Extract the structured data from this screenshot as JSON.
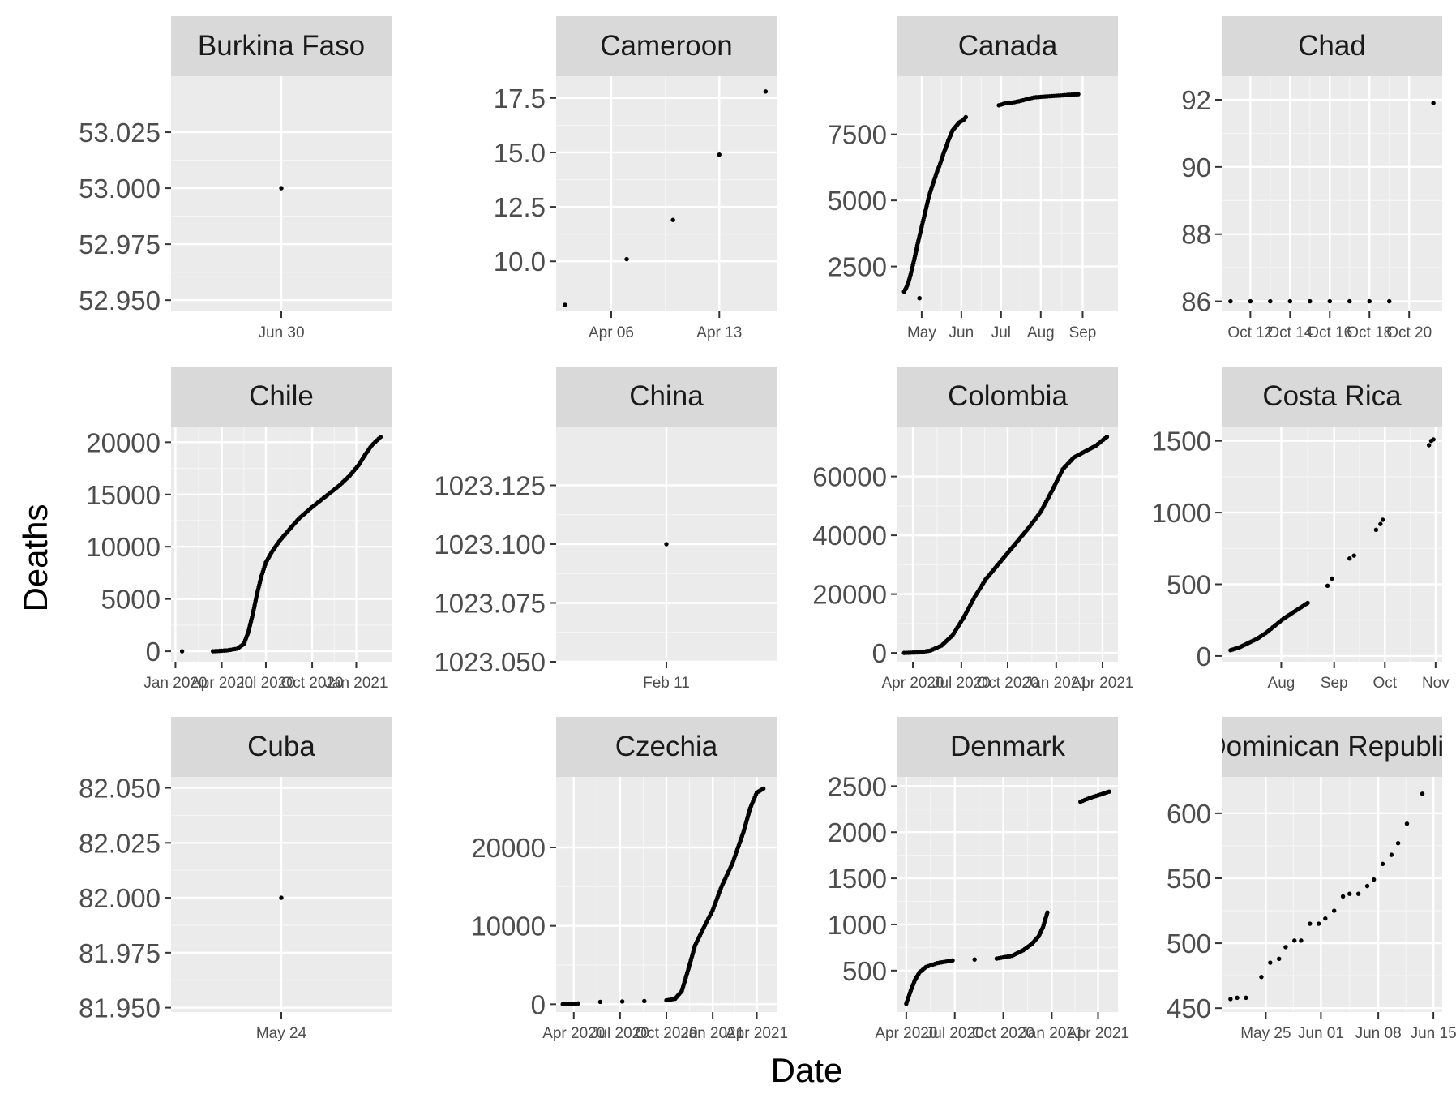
{
  "chart_data": {
    "type": "scatter",
    "xlabel": "Date",
    "ylabel": "Deaths",
    "panels": [
      {
        "title": "Burkina Faso",
        "xticks": [
          "Jun 30"
        ],
        "yticks": [
          "52.950",
          "52.975",
          "53.000",
          "53.025"
        ],
        "ylim": [
          52.945,
          53.05
        ],
        "xlim": [
          0,
          1
        ],
        "xtick_pos": [
          0.5
        ],
        "ytick_vals": [
          52.95,
          52.975,
          53.0,
          53.025
        ],
        "points": [
          [
            0.5,
            53.0
          ]
        ]
      },
      {
        "title": "Cameroon",
        "xticks": [
          "Apr 06",
          "Apr 13"
        ],
        "yticks": [
          "10.0",
          "12.5",
          "15.0",
          "17.5"
        ],
        "ylim": [
          7.7,
          18.5
        ],
        "xlim": [
          0,
          1
        ],
        "xtick_pos": [
          0.25,
          0.74
        ],
        "ytick_vals": [
          10.0,
          12.5,
          15.0,
          17.5
        ],
        "points": [
          [
            0.04,
            8.0
          ],
          [
            0.32,
            10.1
          ],
          [
            0.53,
            11.9
          ],
          [
            0.74,
            14.9
          ],
          [
            0.95,
            17.8
          ]
        ]
      },
      {
        "title": "Canada",
        "xticks": [
          "May",
          "Jun",
          "Jul",
          "Aug",
          "Sep"
        ],
        "yticks": [
          "2500",
          "5000",
          "7500"
        ],
        "ylim": [
          800,
          9700
        ],
        "xlim": [
          0,
          1
        ],
        "xtick_pos": [
          0.11,
          0.29,
          0.47,
          0.65,
          0.84
        ],
        "ytick_vals": [
          2500,
          5000,
          7500
        ],
        "series_curve": [
          [
            0.03,
            1550
          ],
          [
            0.04,
            1700
          ],
          [
            0.05,
            1900
          ],
          [
            0.06,
            2200
          ],
          [
            0.07,
            2550
          ],
          [
            0.08,
            2900
          ],
          [
            0.09,
            3300
          ],
          [
            0.1,
            3650
          ],
          [
            0.11,
            4000
          ],
          [
            0.12,
            4350
          ],
          [
            0.13,
            4700
          ],
          [
            0.14,
            5050
          ],
          [
            0.15,
            5350
          ],
          [
            0.16,
            5600
          ],
          [
            0.17,
            5850
          ],
          [
            0.18,
            6100
          ],
          [
            0.19,
            6300
          ],
          [
            0.2,
            6550
          ],
          [
            0.21,
            6800
          ],
          [
            0.22,
            7000
          ],
          [
            0.23,
            7250
          ],
          [
            0.24,
            7450
          ],
          [
            0.25,
            7650
          ],
          [
            0.26,
            7750
          ],
          [
            0.27,
            7850
          ],
          [
            0.28,
            7950
          ],
          [
            0.3,
            8050
          ],
          [
            0.31,
            8150
          ],
          [
            0.46,
            8600
          ],
          [
            0.48,
            8650
          ],
          [
            0.5,
            8700
          ],
          [
            0.52,
            8700
          ],
          [
            0.55,
            8750
          ],
          [
            0.62,
            8900
          ],
          [
            0.7,
            8950
          ],
          [
            0.74,
            8970
          ],
          [
            0.78,
            9000
          ],
          [
            0.82,
            9020
          ],
          [
            0.97,
            9200
          ],
          [
            0.1,
            1300
          ]
        ]
      },
      {
        "title": "Chad",
        "xticks": [
          "Oct 12",
          "Oct 14",
          "Oct 16",
          "Oct 18",
          "Oct 20"
        ],
        "yticks": [
          "86",
          "88",
          "90",
          "92"
        ],
        "ylim": [
          85.7,
          92.7
        ],
        "xlim": [
          0,
          1
        ],
        "xtick_pos": [
          0.13,
          0.31,
          0.49,
          0.67,
          0.85
        ],
        "ytick_vals": [
          86,
          88,
          90,
          92
        ],
        "points": [
          [
            0.04,
            86
          ],
          [
            0.13,
            86
          ],
          [
            0.22,
            86
          ],
          [
            0.31,
            86
          ],
          [
            0.4,
            86
          ],
          [
            0.49,
            86
          ],
          [
            0.58,
            86
          ],
          [
            0.67,
            86
          ],
          [
            0.76,
            86
          ],
          [
            0.96,
            91.9
          ]
        ]
      },
      {
        "title": "Chile",
        "xticks": [
          "Jan 2020",
          "Apr 2020",
          "Jul 2020",
          "Oct 2020",
          "Jan 2021"
        ],
        "yticks": [
          "0",
          "5000",
          "10000",
          "15000",
          "20000"
        ],
        "ylim": [
          -1000,
          21500
        ],
        "xlim": [
          0,
          1
        ],
        "xtick_pos": [
          0.02,
          0.23,
          0.43,
          0.64,
          0.84
        ],
        "ytick_vals": [
          0,
          5000,
          10000,
          15000,
          20000
        ],
        "series_curve": [
          [
            0.05,
            0
          ],
          [
            0.19,
            0
          ],
          [
            0.23,
            50
          ],
          [
            0.26,
            100
          ],
          [
            0.3,
            250
          ],
          [
            0.33,
            700
          ],
          [
            0.35,
            1800
          ],
          [
            0.37,
            3500
          ],
          [
            0.39,
            5500
          ],
          [
            0.41,
            7200
          ],
          [
            0.43,
            8500
          ],
          [
            0.46,
            9600
          ],
          [
            0.49,
            10500
          ],
          [
            0.53,
            11500
          ],
          [
            0.58,
            12700
          ],
          [
            0.64,
            13800
          ],
          [
            0.7,
            14800
          ],
          [
            0.76,
            15800
          ],
          [
            0.81,
            16800
          ],
          [
            0.85,
            17800
          ],
          [
            0.88,
            18800
          ],
          [
            0.91,
            19700
          ],
          [
            0.95,
            20500
          ]
        ]
      },
      {
        "title": "China",
        "xticks": [
          "Feb 11"
        ],
        "yticks": [
          "1023.050",
          "1023.075",
          "1023.100",
          "1023.125"
        ],
        "ylim": [
          1023.05,
          1023.15
        ],
        "xlim": [
          0,
          1
        ],
        "xtick_pos": [
          0.5
        ],
        "ytick_vals": [
          1023.05,
          1023.075,
          1023.1,
          1023.125
        ],
        "points": [
          [
            0.5,
            1023.1
          ]
        ]
      },
      {
        "title": "Colombia",
        "xticks": [
          "Apr 2020",
          "Jul 2020",
          "Oct 2020",
          "Jan 2021",
          "Apr 2021"
        ],
        "yticks": [
          "0",
          "20000",
          "40000",
          "60000"
        ],
        "ylim": [
          -3000,
          77000
        ],
        "xlim": [
          0,
          1
        ],
        "xtick_pos": [
          0.07,
          0.29,
          0.5,
          0.72,
          0.93
        ],
        "ytick_vals": [
          0,
          20000,
          40000,
          60000
        ],
        "series_curve": [
          [
            0.03,
            0
          ],
          [
            0.1,
            200
          ],
          [
            0.15,
            800
          ],
          [
            0.2,
            2500
          ],
          [
            0.25,
            6000
          ],
          [
            0.3,
            12000
          ],
          [
            0.35,
            19000
          ],
          [
            0.4,
            25000
          ],
          [
            0.45,
            29500
          ],
          [
            0.5,
            34000
          ],
          [
            0.55,
            38500
          ],
          [
            0.6,
            43000
          ],
          [
            0.65,
            48000
          ],
          [
            0.7,
            55000
          ],
          [
            0.75,
            62500
          ],
          [
            0.8,
            66500
          ],
          [
            0.85,
            68500
          ],
          [
            0.9,
            70500
          ],
          [
            0.95,
            73500
          ]
        ]
      },
      {
        "title": "Costa Rica",
        "xticks": [
          "Aug",
          "Sep",
          "Oct",
          "Nov"
        ],
        "yticks": [
          "0",
          "500",
          "1000",
          "1500"
        ],
        "ylim": [
          -40,
          1600
        ],
        "xlim": [
          0,
          1
        ],
        "xtick_pos": [
          0.27,
          0.51,
          0.74,
          0.97
        ],
        "ytick_vals": [
          0,
          500,
          1000,
          1500
        ],
        "series_curve": [
          [
            0.04,
            40
          ],
          [
            0.08,
            60
          ],
          [
            0.12,
            90
          ],
          [
            0.16,
            120
          ],
          [
            0.2,
            160
          ],
          [
            0.24,
            210
          ],
          [
            0.28,
            260
          ],
          [
            0.32,
            300
          ],
          [
            0.36,
            340
          ],
          [
            0.39,
            370
          ]
        ],
        "points": [
          [
            0.48,
            490
          ],
          [
            0.5,
            540
          ],
          [
            0.58,
            680
          ],
          [
            0.6,
            700
          ],
          [
            0.7,
            880
          ],
          [
            0.72,
            920
          ],
          [
            0.73,
            950
          ],
          [
            0.94,
            1470
          ],
          [
            0.95,
            1500
          ],
          [
            0.96,
            1510
          ]
        ]
      },
      {
        "title": "Cuba",
        "xticks": [
          "May 24"
        ],
        "yticks": [
          "81.950",
          "81.975",
          "82.000",
          "82.025",
          "82.050"
        ],
        "ylim": [
          81.948,
          82.055
        ],
        "xlim": [
          0,
          1
        ],
        "xtick_pos": [
          0.5
        ],
        "ytick_vals": [
          81.95,
          81.975,
          82.0,
          82.025,
          82.05
        ],
        "points": [
          [
            0.5,
            82.0
          ]
        ]
      },
      {
        "title": "Czechia",
        "xticks": [
          "Apr 2020",
          "Jul 2020",
          "Oct 2020",
          "Jan 2021",
          "Apr 2021"
        ],
        "yticks": [
          "0",
          "10000",
          "20000"
        ],
        "ylim": [
          -1000,
          29000
        ],
        "xlim": [
          0,
          1
        ],
        "xtick_pos": [
          0.08,
          0.29,
          0.5,
          0.71,
          0.91
        ],
        "ytick_vals": [
          0,
          10000,
          20000
        ],
        "series_curve": [
          [
            0.03,
            0
          ],
          [
            0.1,
            100
          ],
          [
            0.2,
            300
          ],
          [
            0.3,
            350
          ],
          [
            0.4,
            400
          ],
          [
            0.5,
            500
          ],
          [
            0.54,
            700
          ],
          [
            0.57,
            1700
          ],
          [
            0.6,
            4500
          ],
          [
            0.63,
            7500
          ],
          [
            0.67,
            9800
          ],
          [
            0.71,
            12000
          ],
          [
            0.75,
            15000
          ],
          [
            0.8,
            18000
          ],
          [
            0.85,
            22000
          ],
          [
            0.88,
            25000
          ],
          [
            0.91,
            27000
          ],
          [
            0.94,
            27500
          ]
        ]
      },
      {
        "title": "Denmark",
        "xticks": [
          "Apr 2020",
          "Jul 2020",
          "Oct 2020",
          "Jan 2021",
          "Apr 2021"
        ],
        "yticks": [
          "500",
          "1000",
          "1500",
          "2000",
          "2500"
        ],
        "ylim": [
          50,
          2600
        ],
        "xlim": [
          0,
          1
        ],
        "xtick_pos": [
          0.04,
          0.26,
          0.48,
          0.7,
          0.91
        ],
        "ytick_vals": [
          500,
          1000,
          1500,
          2000,
          2500
        ],
        "series_curve": [
          [
            0.04,
            140
          ],
          [
            0.06,
            280
          ],
          [
            0.08,
            400
          ],
          [
            0.1,
            480
          ],
          [
            0.13,
            540
          ],
          [
            0.18,
            580
          ],
          [
            0.25,
            610
          ],
          [
            0.35,
            620
          ],
          [
            0.45,
            630
          ],
          [
            0.52,
            660
          ],
          [
            0.57,
            720
          ],
          [
            0.61,
            790
          ],
          [
            0.64,
            870
          ],
          [
            0.66,
            970
          ],
          [
            0.68,
            1130
          ]
        ],
        "series_curve_b": [
          [
            0.83,
            2330
          ],
          [
            0.87,
            2370
          ],
          [
            0.91,
            2400
          ],
          [
            0.96,
            2440
          ]
        ]
      },
      {
        "title": "Dominican Republic",
        "xticks": [
          "May 25",
          "Jun 01",
          "Jun 08",
          "Jun 15"
        ],
        "yticks": [
          "450",
          "500",
          "550",
          "600"
        ],
        "ylim": [
          447,
          628
        ],
        "xlim": [
          0,
          1
        ],
        "xtick_pos": [
          0.2,
          0.45,
          0.71,
          0.96
        ],
        "ytick_vals": [
          450,
          500,
          550,
          600
        ],
        "points": [
          [
            0.04,
            457
          ],
          [
            0.07,
            458
          ],
          [
            0.11,
            458
          ],
          [
            0.18,
            474
          ],
          [
            0.22,
            485
          ],
          [
            0.26,
            488
          ],
          [
            0.29,
            497
          ],
          [
            0.33,
            502
          ],
          [
            0.36,
            502
          ],
          [
            0.4,
            515
          ],
          [
            0.44,
            515
          ],
          [
            0.47,
            519
          ],
          [
            0.51,
            525
          ],
          [
            0.55,
            536
          ],
          [
            0.58,
            538
          ],
          [
            0.62,
            538
          ],
          [
            0.66,
            544
          ],
          [
            0.69,
            549
          ],
          [
            0.73,
            561
          ],
          [
            0.77,
            568
          ],
          [
            0.8,
            577
          ],
          [
            0.84,
            592
          ],
          [
            0.91,
            615
          ]
        ]
      }
    ]
  }
}
